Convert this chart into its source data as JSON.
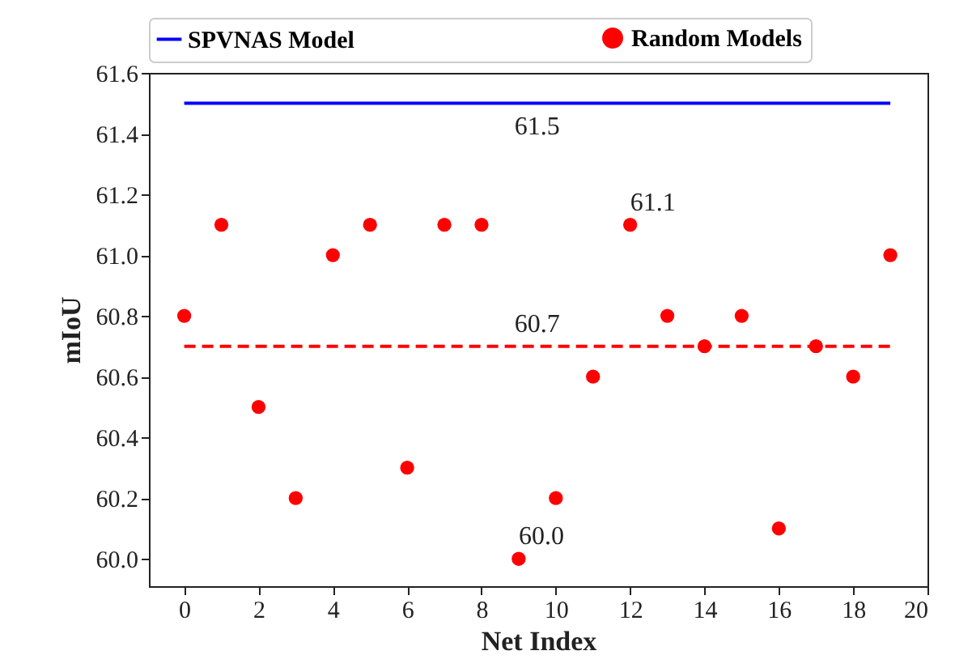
{
  "chart_data": {
    "type": "scatter",
    "xlabel": "Net Index",
    "ylabel": "mIoU",
    "x": [
      0,
      1,
      2,
      3,
      4,
      5,
      6,
      7,
      8,
      9,
      10,
      11,
      12,
      13,
      14,
      15,
      16,
      17,
      18,
      19
    ],
    "series": [
      {
        "name": "SPVNAS Model",
        "type": "line",
        "color": "#0000ff",
        "x": [
          0,
          19
        ],
        "values": [
          61.5,
          61.5
        ]
      },
      {
        "name": "Random Models",
        "color": "#ff0000",
        "marker": "circle",
        "values": [
          60.8,
          61.1,
          60.5,
          60.2,
          61.0,
          61.1,
          60.3,
          61.1,
          61.1,
          60.0,
          60.2,
          60.6,
          61.1,
          60.8,
          60.7,
          60.8,
          60.1,
          60.7,
          60.6,
          61.0
        ]
      }
    ],
    "ref_lines": [
      {
        "axis": "y",
        "value": 60.7,
        "color": "#ff0000",
        "line_style": "dashed"
      }
    ],
    "annotations": [
      {
        "text": "61.5",
        "x": 9.5,
        "y": 61.5
      },
      {
        "text": "61.1",
        "x": 12,
        "y": 61.1
      },
      {
        "text": "60.7",
        "x": 9.5,
        "y": 60.7
      },
      {
        "text": "60.0",
        "x": 9,
        "y": 60.0
      }
    ],
    "xlim": [
      -0.95,
      20
    ],
    "xticks": [
      0,
      2,
      4,
      6,
      8,
      10,
      12,
      14,
      16,
      18,
      20
    ],
    "ylim": [
      59.91,
      61.6
    ],
    "yticks": [
      {
        "value": 60,
        "label": "60.0"
      },
      60.2,
      60.4,
      60.6,
      60.8,
      {
        "value": 61,
        "label": "61.0"
      },
      61.2,
      61.4,
      61.6
    ],
    "legend": "top",
    "grid": false
  }
}
